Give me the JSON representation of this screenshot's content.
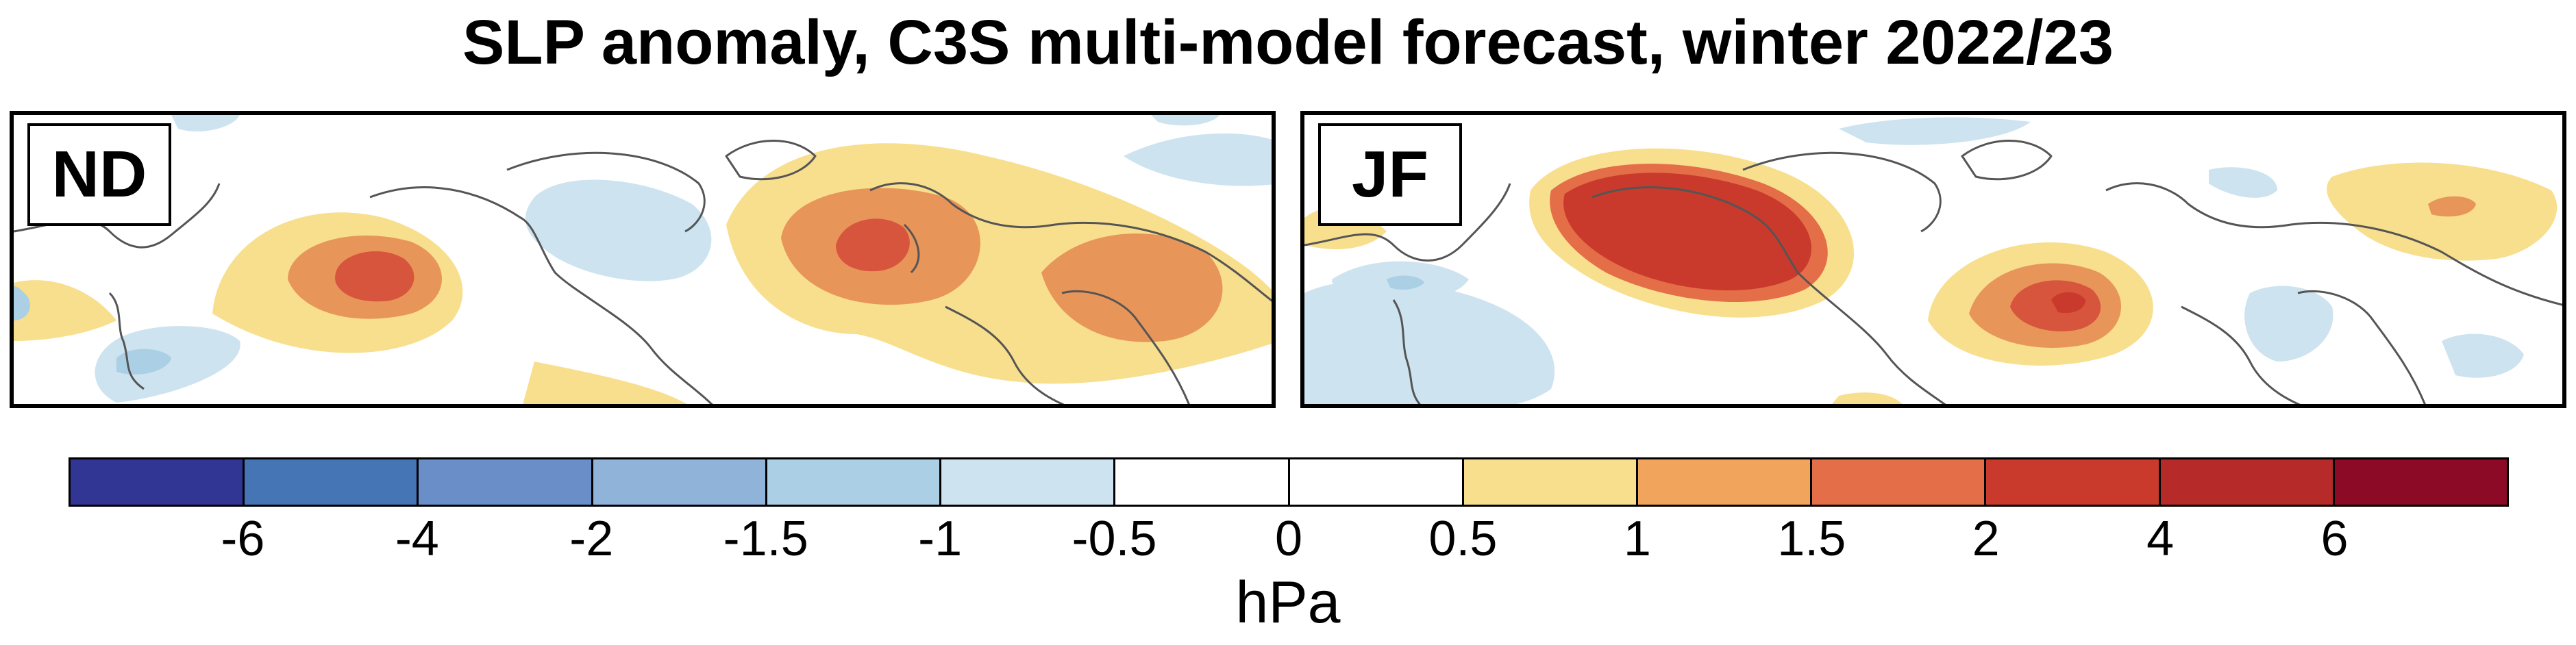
{
  "title": "SLP anomaly, C3S multi-model forecast, winter 2022/23",
  "panels": [
    {
      "label": "ND"
    },
    {
      "label": "JF"
    }
  ],
  "colorbar": {
    "unit": "hPa",
    "colors": [
      "#313695",
      "#4575b4",
      "#6a8ec8",
      "#8fb3d9",
      "#abcfe5",
      "#cde3ef",
      "#ffffff",
      "#ffffff",
      "#f8df8e",
      "#f1a45c",
      "#e46e47",
      "#c93a2c",
      "#b62a2a",
      "#8c0a26"
    ],
    "ticks": [
      "-6",
      "-4",
      "-2",
      "-1.5",
      "-1",
      "-0.5",
      "0",
      "0.5",
      "1",
      "1.5",
      "2",
      "4",
      "6"
    ]
  }
}
